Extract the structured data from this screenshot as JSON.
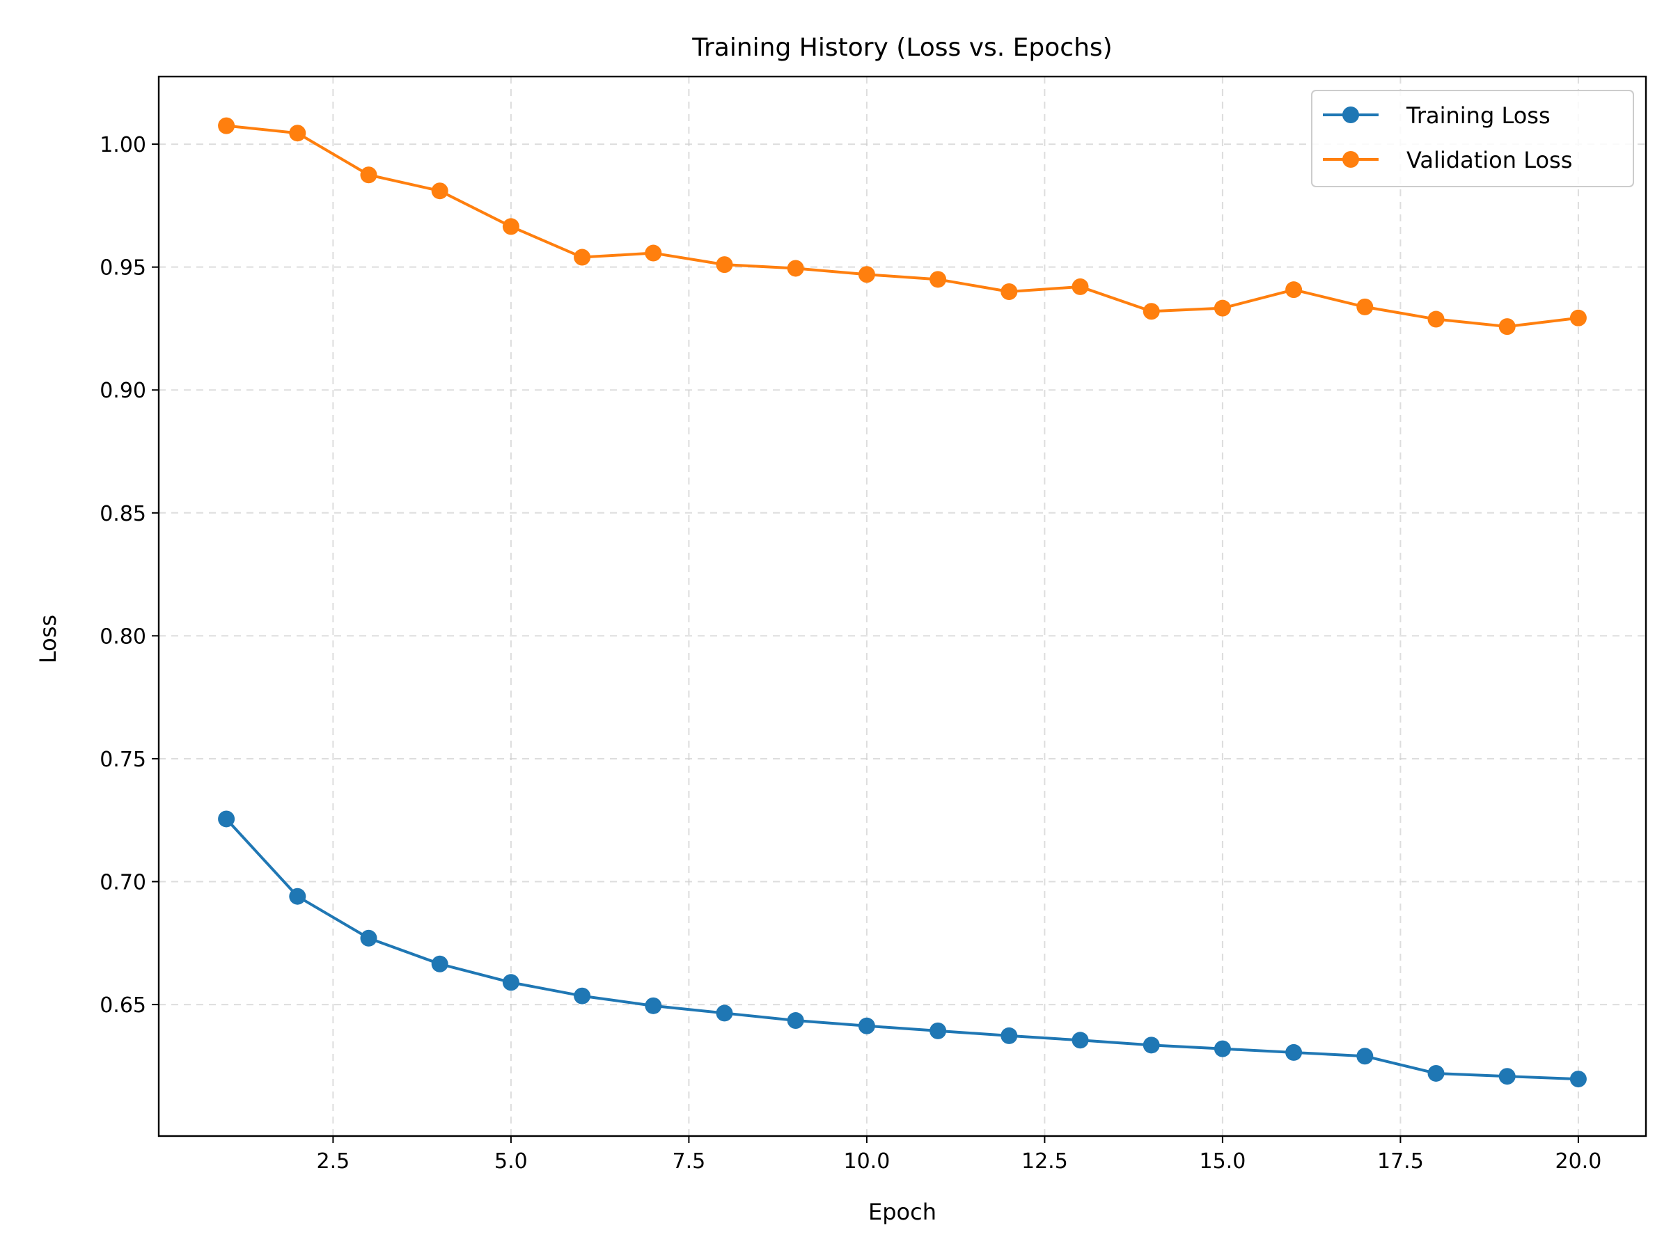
{
  "chart_data": {
    "type": "line",
    "title": "Training History (Loss vs. Epochs)",
    "xlabel": "Epoch",
    "ylabel": "Loss",
    "xlim": [
      0.05,
      20.95
    ],
    "ylim": [
      0.5965,
      1.0275
    ],
    "xticks": [
      2.5,
      5.0,
      7.5,
      10.0,
      12.5,
      15.0,
      17.5,
      20.0
    ],
    "xtick_labels": [
      "2.5",
      "5.0",
      "7.5",
      "10.0",
      "12.5",
      "15.0",
      "17.5",
      "20.0"
    ],
    "yticks": [
      0.65,
      0.7,
      0.75,
      0.8,
      0.85,
      0.9,
      0.95,
      1.0
    ],
    "ytick_labels": [
      "0.65",
      "0.70",
      "0.75",
      "0.80",
      "0.85",
      "0.90",
      "0.95",
      "1.00"
    ],
    "grid": true,
    "legend_position": "top-right",
    "x": [
      1,
      2,
      3,
      4,
      5,
      6,
      7,
      8,
      9,
      10,
      11,
      12,
      13,
      14,
      15,
      16,
      17,
      18,
      19,
      20
    ],
    "series": [
      {
        "name": "Training Loss",
        "color": "#1f77b4",
        "marker": "circle",
        "values": [
          0.7255,
          0.694,
          0.677,
          0.6665,
          0.659,
          0.6535,
          0.6495,
          0.6465,
          0.6435,
          0.6413,
          0.6393,
          0.6373,
          0.6355,
          0.6335,
          0.632,
          0.6305,
          0.629,
          0.622,
          0.6208,
          0.6197
        ]
      },
      {
        "name": "Validation Loss",
        "color": "#ff7f0e",
        "marker": "circle",
        "values": [
          1.0075,
          1.0045,
          0.9875,
          0.981,
          0.9665,
          0.954,
          0.9557,
          0.951,
          0.9495,
          0.947,
          0.945,
          0.94,
          0.942,
          0.932,
          0.9333,
          0.9408,
          0.9338,
          0.9288,
          0.9258,
          0.9293
        ]
      }
    ]
  }
}
